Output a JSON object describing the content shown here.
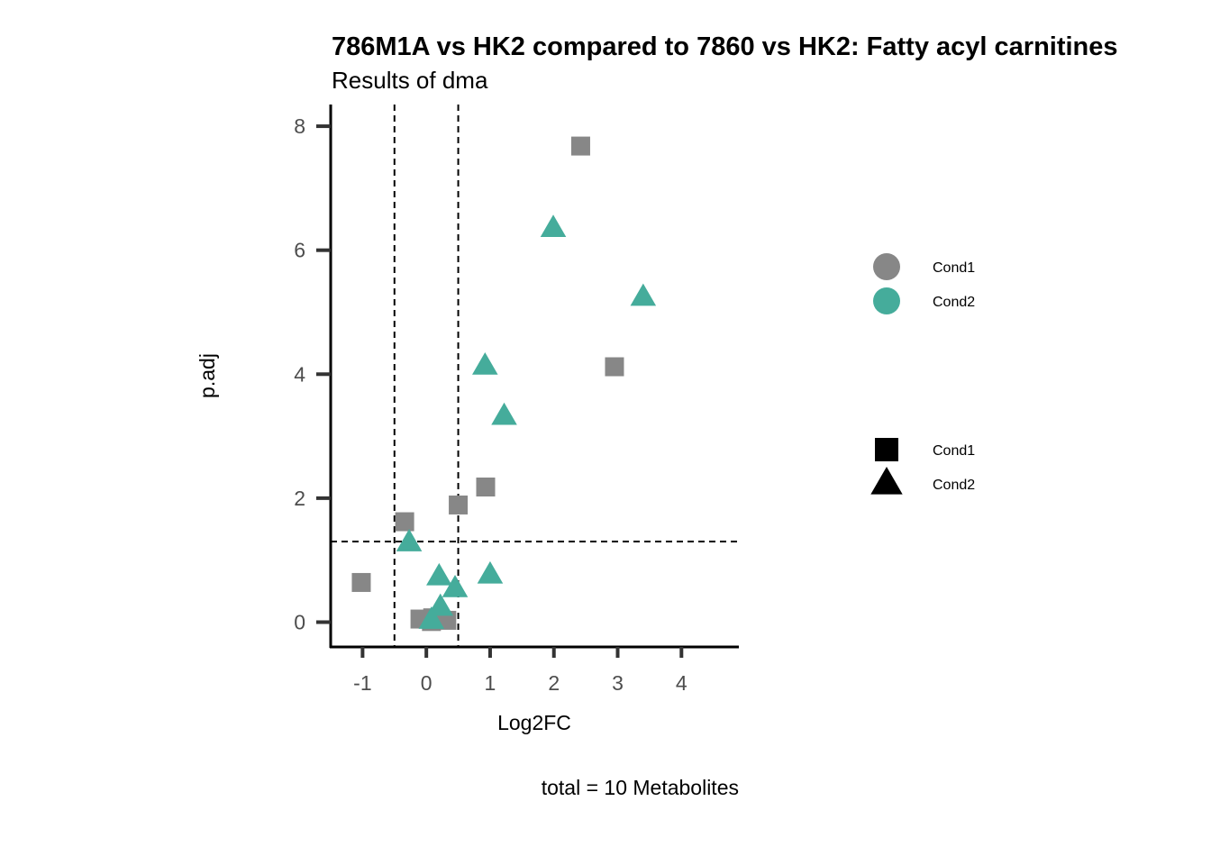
{
  "chart_data": {
    "type": "scatter",
    "title": "786M1A vs HK2 compared to 7860 vs HK2: Fatty acyl carnitines",
    "subtitle": "Results of dma",
    "xlabel": "Log2FC",
    "ylabel": "p.adj",
    "caption": "total = 10 Metabolites",
    "xlim": [
      -1.5,
      4.9
    ],
    "ylim": [
      -0.4,
      8.35
    ],
    "x_ticks": [
      -1,
      0,
      1,
      2,
      3,
      4
    ],
    "x_tick_labels": [
      "-1",
      "0",
      "1",
      "2",
      "3",
      "4"
    ],
    "y_ticks": [
      0,
      2,
      4,
      6,
      8
    ],
    "y_tick_labels": [
      "0",
      "2",
      "4",
      "6",
      "8"
    ],
    "thresholds": {
      "x": [
        -0.5,
        0.5
      ],
      "y": 1.3
    },
    "colors": {
      "Cond1": "#878787",
      "Cond2": "#45ac9b",
      "threshold": "#000000",
      "axis": "#000000",
      "tick": "#333333"
    },
    "series": [
      {
        "name": "Cond1",
        "shape": "square",
        "points": [
          {
            "x": 2.42,
            "y": 7.68
          },
          {
            "x": 2.95,
            "y": 4.12
          },
          {
            "x": 0.93,
            "y": 2.18
          },
          {
            "x": 0.5,
            "y": 1.89
          },
          {
            "x": -0.34,
            "y": 1.62
          },
          {
            "x": -1.02,
            "y": 0.64
          },
          {
            "x": -0.1,
            "y": 0.05
          },
          {
            "x": 0.32,
            "y": 0.03
          },
          {
            "x": 0.08,
            "y": 0.01
          },
          {
            "x": 0.1,
            "y": 0.07
          }
        ]
      },
      {
        "name": "Cond2",
        "shape": "triangle",
        "points": [
          {
            "x": 1.99,
            "y": 6.35
          },
          {
            "x": 3.4,
            "y": 5.24
          },
          {
            "x": 0.92,
            "y": 4.13
          },
          {
            "x": 1.22,
            "y": 3.32
          },
          {
            "x": -0.27,
            "y": 1.28
          },
          {
            "x": 0.2,
            "y": 0.73
          },
          {
            "x": 1.0,
            "y": 0.76
          },
          {
            "x": 0.45,
            "y": 0.54
          },
          {
            "x": 0.22,
            "y": 0.24
          },
          {
            "x": 0.08,
            "y": 0.03
          }
        ]
      }
    ],
    "legends": [
      {
        "kind": "color",
        "items": [
          {
            "label": "Cond1",
            "color": "#878787"
          },
          {
            "label": "Cond2",
            "color": "#45ac9b"
          }
        ]
      },
      {
        "kind": "shape",
        "items": [
          {
            "label": "Cond1",
            "shape": "square"
          },
          {
            "label": "Cond2",
            "shape": "triangle"
          }
        ]
      }
    ]
  }
}
